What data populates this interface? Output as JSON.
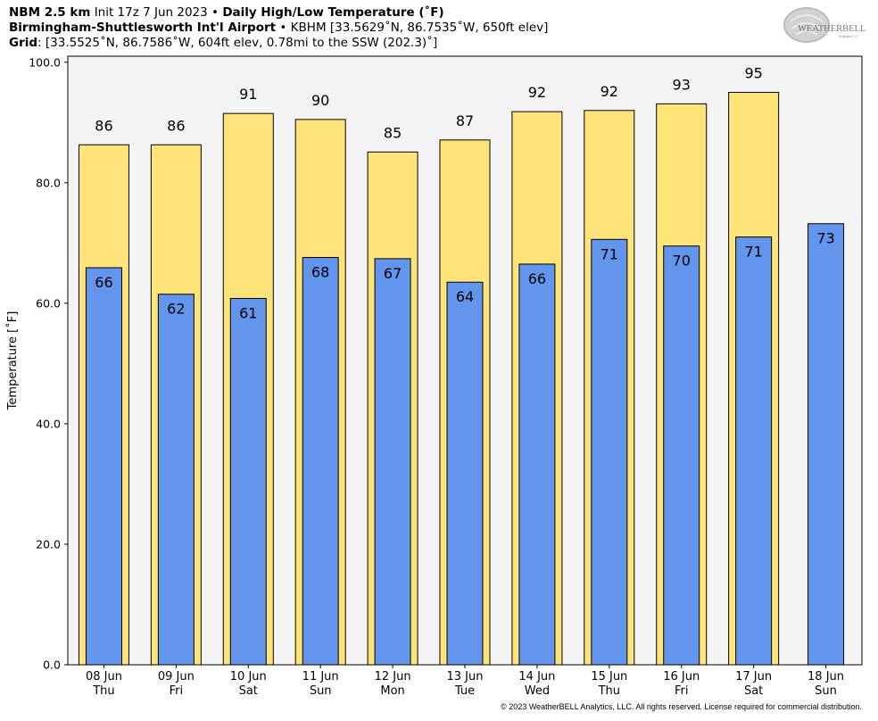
{
  "header": {
    "model": "NBM 2.5 km",
    "init": "Init 17z 7 Jun 2023",
    "sep": "•",
    "product": "Daily High/Low Temperature (˚F)",
    "station_name": "Birmingham-Shuttlesworth Int'l Airport",
    "station_info": "KBHM [33.5629˚N, 86.7535˚W, 650ft elev]",
    "grid_label": "Grid",
    "grid_info": ": [33.5525˚N, 86.7586˚W, 604ft elev, 0.78mi to the SSW (202.3)˚]"
  },
  "logo": {
    "text": "WEATHERBELL",
    "subtext": "Analytics LLC"
  },
  "copyright": "© 2023 WeatherBELL Analytics, LLC. All rights reserved. License required for commercial distribution.",
  "colors": {
    "high": "#FFE47A",
    "low": "#6495ED",
    "plot_bg": "#F4F4F4"
  },
  "chart_data": {
    "type": "bar",
    "ylabel": "Temperature [˚F]",
    "ylim": [
      0,
      101
    ],
    "yticks": [
      0,
      20,
      40,
      60,
      80,
      100
    ],
    "ytick_labels": [
      "0.0",
      "20.0",
      "40.0",
      "60.0",
      "80.0",
      "100.0"
    ],
    "categories": [
      {
        "date": "08 Jun",
        "day": "Thu"
      },
      {
        "date": "09 Jun",
        "day": "Fri"
      },
      {
        "date": "10 Jun",
        "day": "Sat"
      },
      {
        "date": "11 Jun",
        "day": "Sun"
      },
      {
        "date": "12 Jun",
        "day": "Mon"
      },
      {
        "date": "13 Jun",
        "day": "Tue"
      },
      {
        "date": "14 Jun",
        "day": "Wed"
      },
      {
        "date": "15 Jun",
        "day": "Thu"
      },
      {
        "date": "16 Jun",
        "day": "Fri"
      },
      {
        "date": "17 Jun",
        "day": "Sat"
      },
      {
        "date": "18 Jun",
        "day": "Sun"
      }
    ],
    "series": [
      {
        "key": "high",
        "values": [
          86.3,
          86.3,
          91.5,
          90.5,
          85.1,
          87.1,
          91.8,
          92.0,
          93.1,
          95.0,
          null
        ],
        "labels": [
          "86",
          "86",
          "91",
          "90",
          "85",
          "87",
          "92",
          "92",
          "93",
          "95",
          ""
        ]
      },
      {
        "key": "low",
        "values": [
          65.9,
          61.5,
          60.8,
          67.6,
          67.4,
          63.5,
          66.5,
          70.6,
          69.5,
          71.0,
          73.2
        ],
        "labels": [
          "66",
          "62",
          "61",
          "68",
          "67",
          "64",
          "66",
          "71",
          "70",
          "71",
          "73"
        ]
      }
    ]
  }
}
